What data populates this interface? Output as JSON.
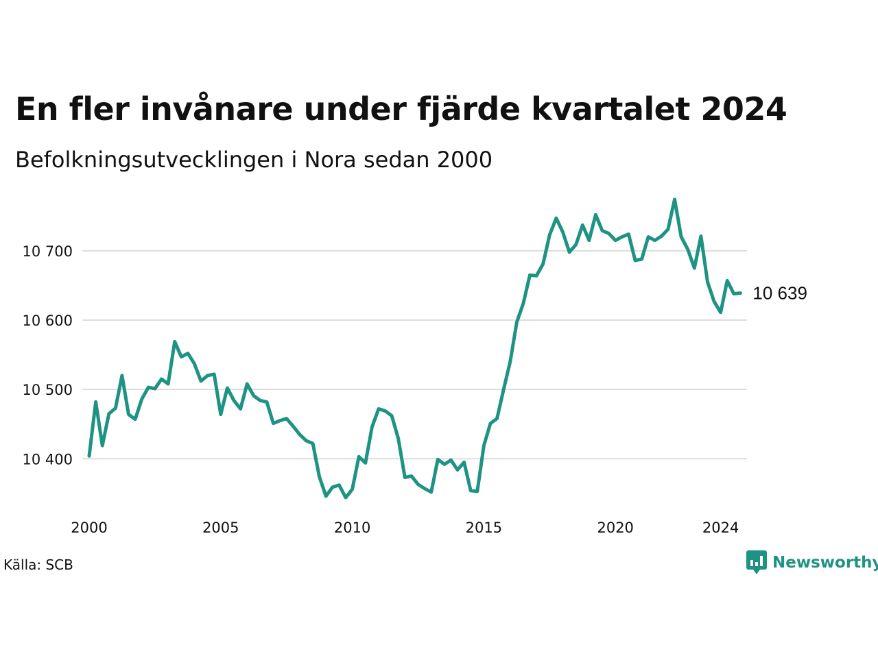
{
  "title": "En fler invånare under fjärde kvartalet 2024",
  "subtitle": "Befolkningsutvecklingen i Nora sedan 2000",
  "source": "Källa: SCB",
  "brand": {
    "name": "Newsworthy",
    "icon": "newsworthy-logo-icon",
    "color": "#1f9383"
  },
  "end_label": "10 639",
  "chart_data": {
    "type": "line",
    "title": "En fler invånare under fjärde kvartalet 2024",
    "subtitle": "Befolkningsutvecklingen i Nora sedan 2000",
    "xlabel": "",
    "ylabel": "",
    "xlim": [
      2000.0,
      2025.0
    ],
    "ylim": [
      10340,
      10775
    ],
    "grid": true,
    "line_color": "#1f9383",
    "x_ticks": [
      2000,
      2005,
      2010,
      2015,
      2020,
      2024
    ],
    "x_tick_labels": [
      "2000",
      "2005",
      "2010",
      "2015",
      "2020",
      "2024"
    ],
    "y_ticks": [
      10400,
      10500,
      10600,
      10700
    ],
    "y_tick_labels": [
      "10 400",
      "10 500",
      "10 600",
      "10 700"
    ],
    "series": [
      {
        "x": [
          2000.0,
          2000.25,
          2000.5,
          2000.75,
          2001.0,
          2001.25,
          2001.5,
          2001.75,
          2002.0,
          2002.25,
          2002.5,
          2002.75,
          2003.0,
          2003.25,
          2003.5,
          2003.75,
          2004.0,
          2004.25,
          2004.5,
          2004.75,
          2005.0,
          2005.25,
          2005.5,
          2005.75,
          2006.0,
          2006.25,
          2006.5,
          2006.75,
          2007.0,
          2007.25,
          2007.5,
          2007.75,
          2008.0,
          2008.25,
          2008.5,
          2008.75,
          2009.0,
          2009.25,
          2009.5,
          2009.75,
          2010.0,
          2010.25,
          2010.5,
          2010.75,
          2011.0,
          2011.25,
          2011.5,
          2011.75,
          2012.0,
          2012.25,
          2012.5,
          2012.75,
          2013.0,
          2013.25,
          2013.5,
          2013.75,
          2014.0,
          2014.25,
          2014.5,
          2014.75,
          2015.0,
          2015.25,
          2015.5,
          2015.75,
          2016.0,
          2016.25,
          2016.5,
          2016.75,
          2017.0,
          2017.25,
          2017.5,
          2017.75,
          2018.0,
          2018.25,
          2018.5,
          2018.75,
          2019.0,
          2019.25,
          2019.5,
          2019.75,
          2020.0,
          2020.25,
          2020.5,
          2020.75,
          2021.0,
          2021.25,
          2021.5,
          2021.75,
          2022.0,
          2022.25,
          2022.5,
          2022.75,
          2023.0,
          2023.25,
          2023.5,
          2023.75,
          2024.0,
          2024.25,
          2024.5,
          2024.75
        ],
        "y": [
          10404,
          10482,
          10419,
          10465,
          10473,
          10520,
          10464,
          10457,
          10486,
          10503,
          10501,
          10515,
          10508,
          10569,
          10547,
          10552,
          10537,
          10512,
          10520,
          10522,
          10464,
          10502,
          10484,
          10472,
          10508,
          10491,
          10484,
          10482,
          10451,
          10455,
          10458,
          10447,
          10435,
          10426,
          10422,
          10374,
          10346,
          10359,
          10362,
          10344,
          10356,
          10403,
          10394,
          10446,
          10472,
          10469,
          10462,
          10429,
          10373,
          10375,
          10363,
          10357,
          10352,
          10399,
          10392,
          10398,
          10384,
          10395,
          10354,
          10353,
          10419,
          10451,
          10458,
          10500,
          10540,
          10597,
          10624,
          10665,
          10664,
          10681,
          10723,
          10747,
          10727,
          10698,
          10709,
          10737,
          10715,
          10752,
          10729,
          10725,
          10715,
          10720,
          10724,
          10686,
          10688,
          10720,
          10715,
          10721,
          10731,
          10774,
          10720,
          10702,
          10675,
          10721,
          10655,
          10627,
          10611,
          10657,
          10638,
          10639
        ]
      }
    ]
  }
}
